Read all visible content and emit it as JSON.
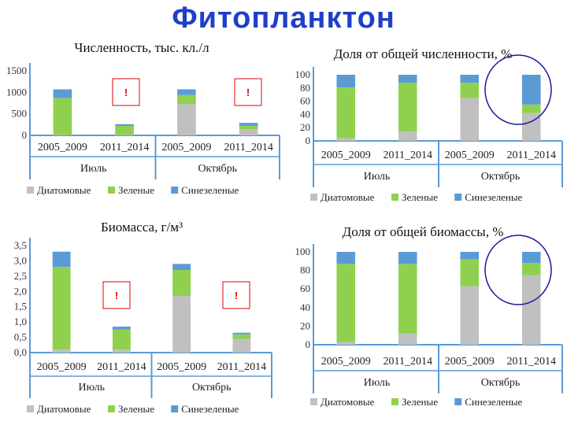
{
  "page": {
    "title": "Фитопланктон"
  },
  "colors": {
    "diatoms": "#c0c0c0",
    "green": "#8fd14f",
    "bluegreen": "#5b9bd5",
    "axis": "#5b9bd5",
    "alert": "#e00000",
    "highlight": "#1a1aa0"
  },
  "chart_data": [
    {
      "id": "abundance",
      "type": "bar",
      "stacked": true,
      "title": "Численность, тыс. кл./л",
      "categories": [
        "2005_2009",
        "2011_2014",
        "2005_2009",
        "2011_2014"
      ],
      "groups": [
        "Июль",
        "Октябрь"
      ],
      "yticks": [
        "0",
        "500",
        "1000",
        "1500"
      ],
      "ylim": [
        0,
        1500
      ],
      "series": [
        {
          "name": "Диатомовые",
          "values": [
            10,
            15,
            730,
            140
          ]
        },
        {
          "name": "Зеленые",
          "values": [
            860,
            205,
            210,
            80
          ]
        },
        {
          "name": "Синезеленые",
          "values": [
            200,
            40,
            130,
            70
          ]
        }
      ],
      "markers": [
        "!",
        "!"
      ],
      "legend": "bottom"
    },
    {
      "id": "abundance_share",
      "type": "bar",
      "stacked": true,
      "title": "Доля от общей численности, %",
      "categories": [
        "2005_2009",
        "2011_2014",
        "2005_2009",
        "2011_2014"
      ],
      "groups": [
        "Июль",
        "Октябрь"
      ],
      "yticks": [
        "0",
        "20",
        "40",
        "60",
        "80",
        "100"
      ],
      "ylim": [
        0,
        100
      ],
      "series": [
        {
          "name": "Диатомовые",
          "values": [
            4,
            14,
            65,
            42
          ]
        },
        {
          "name": "Зеленые",
          "values": [
            77,
            74,
            23,
            13
          ]
        },
        {
          "name": "Синезеленые",
          "values": [
            19,
            12,
            12,
            45
          ]
        }
      ],
      "legend": "bottom"
    },
    {
      "id": "biomass",
      "type": "bar",
      "stacked": true,
      "title": "Биомасса, г/м³",
      "categories": [
        "2005_2009",
        "2011_2014",
        "2005_2009",
        "2011_2014"
      ],
      "groups": [
        "Июль",
        "Октябрь"
      ],
      "yticks": [
        "0,0",
        "0,5",
        "1,0",
        "1,5",
        "2,0",
        "2,5",
        "3,0",
        "3,5"
      ],
      "ylim": [
        0,
        3.5
      ],
      "series": [
        {
          "name": "Диатомовые",
          "values": [
            0.1,
            0.1,
            1.85,
            0.45
          ]
        },
        {
          "name": "Зеленые",
          "values": [
            2.7,
            0.65,
            0.85,
            0.15
          ]
        },
        {
          "name": "Синезеленые",
          "values": [
            0.5,
            0.1,
            0.2,
            0.05
          ]
        }
      ],
      "markers": [
        "!",
        "!"
      ],
      "legend": "bottom"
    },
    {
      "id": "biomass_share",
      "type": "bar",
      "stacked": true,
      "title": "Доля от общей биомассы, %",
      "categories": [
        "2005_2009",
        "2011_2014",
        "2005_2009",
        "2011_2014"
      ],
      "groups": [
        "Июль",
        "Октябрь"
      ],
      "yticks": [
        "0",
        "20",
        "40",
        "60",
        "80",
        "100"
      ],
      "ylim": [
        0,
        100
      ],
      "series": [
        {
          "name": "Диатомовые",
          "values": [
            3,
            12,
            63,
            75
          ]
        },
        {
          "name": "Зеленые",
          "values": [
            84,
            75,
            29,
            13
          ]
        },
        {
          "name": "Синезеленые",
          "values": [
            13,
            13,
            8,
            12
          ]
        }
      ],
      "legend": "bottom"
    }
  ]
}
